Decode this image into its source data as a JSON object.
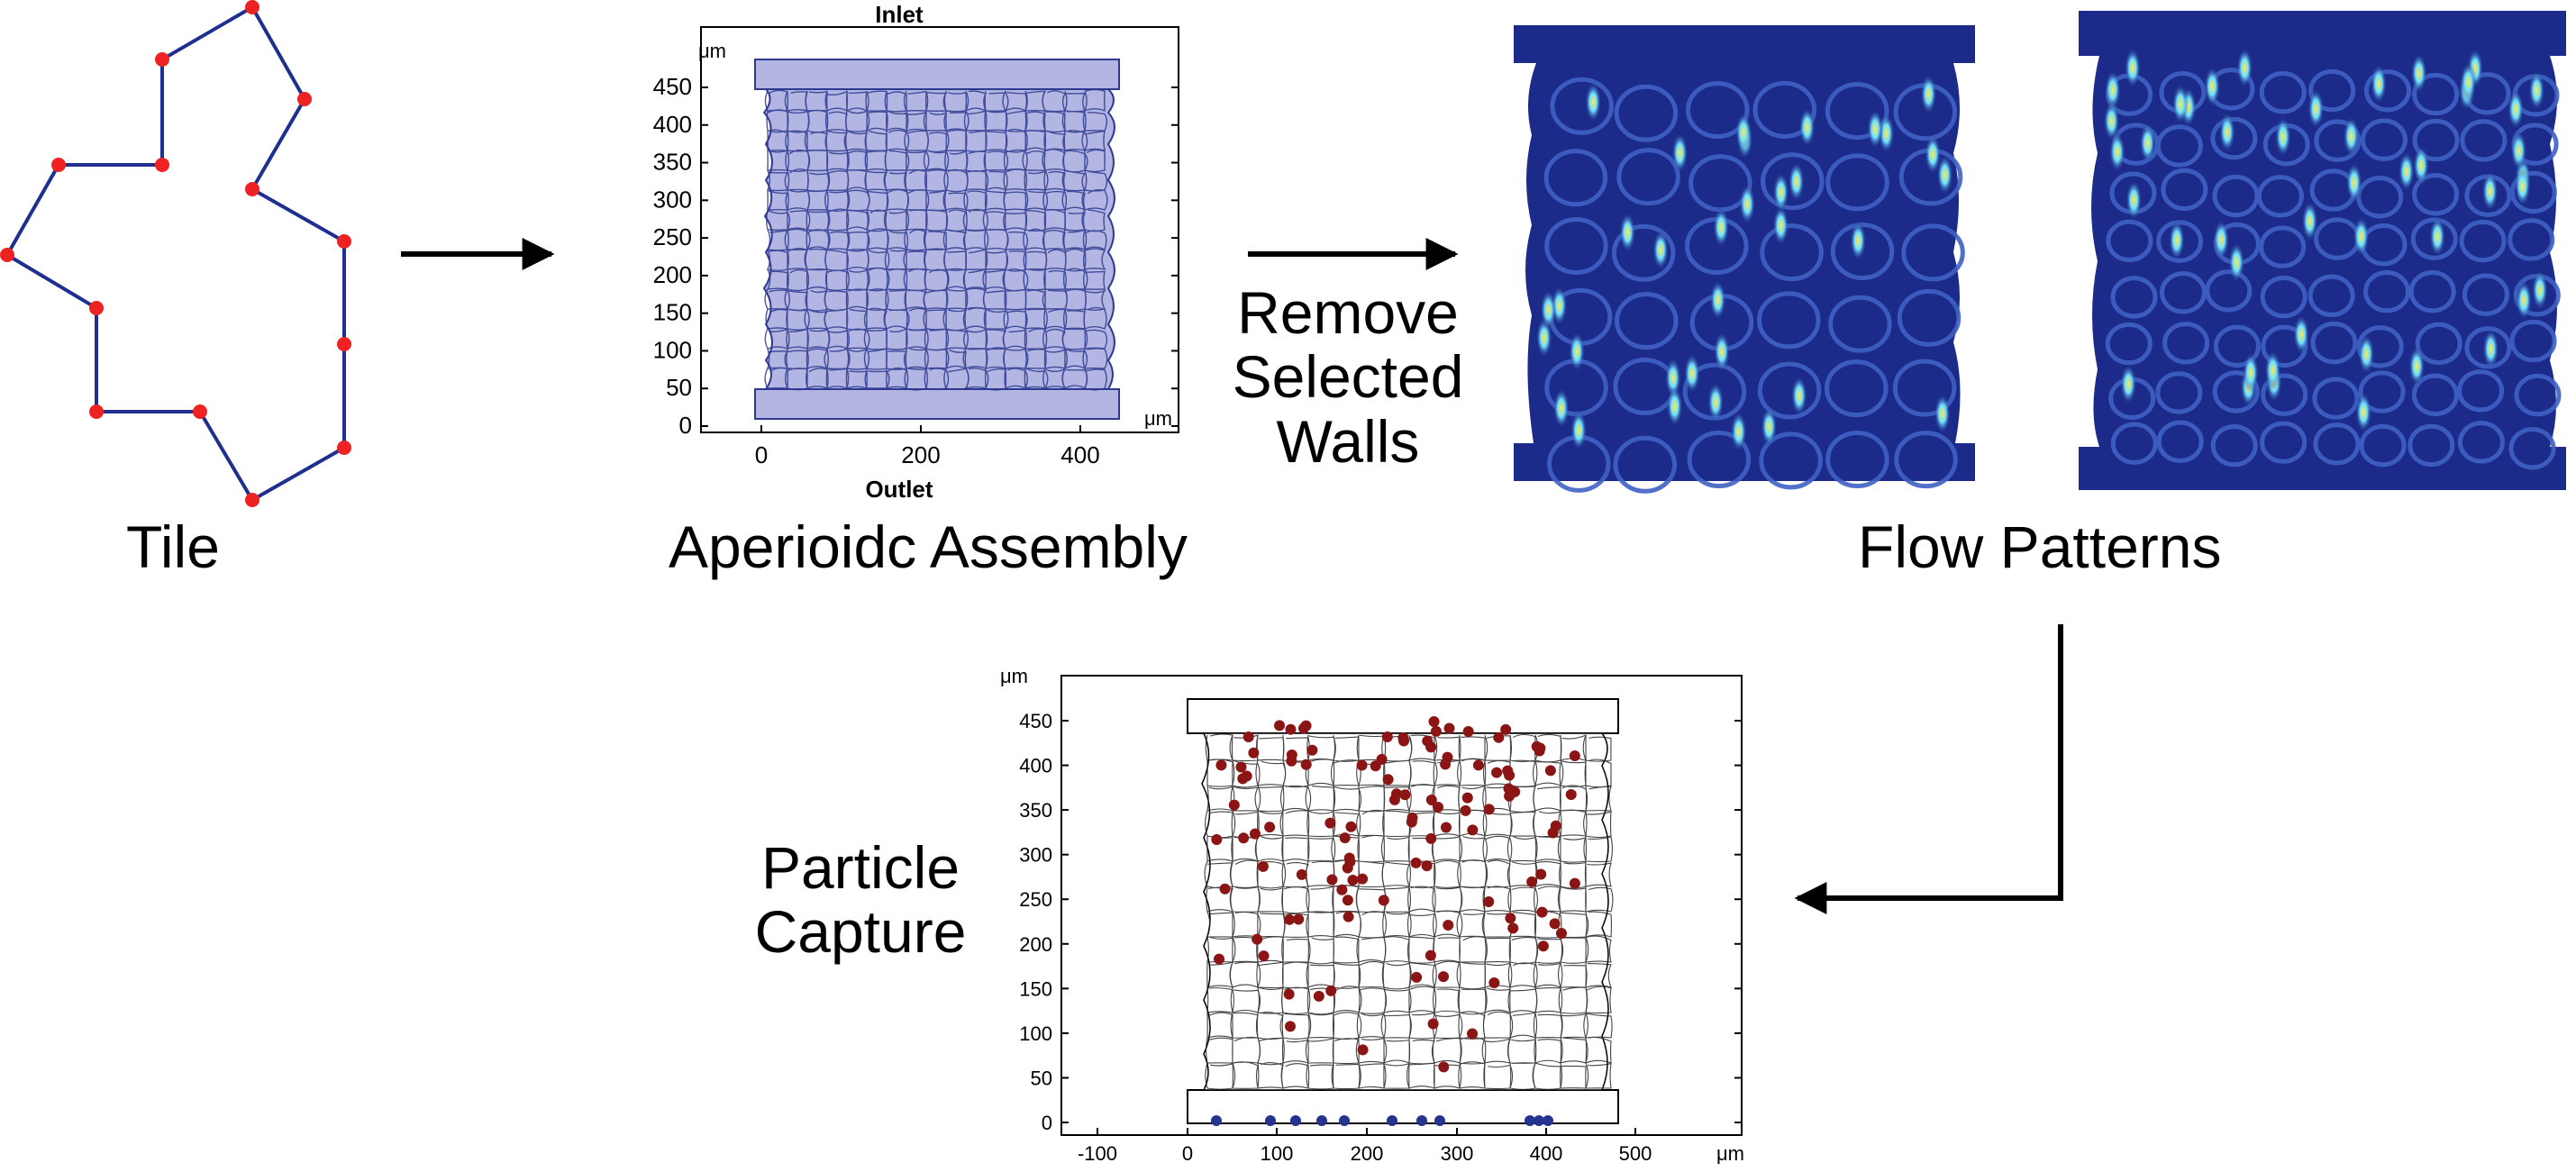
{
  "labels": {
    "tile": "Tile",
    "assembly": "Aperioidc Assembly",
    "remove": [
      "Remove",
      "Selected",
      "Walls"
    ],
    "flow": "Flow Patterns",
    "capture": [
      "Particle",
      "Capture"
    ]
  },
  "assembly_plot": {
    "inlet": "Inlet",
    "outlet": "Outlet",
    "unit": "μm",
    "y_ticks": [
      "450",
      "400",
      "350",
      "300",
      "250",
      "200",
      "150",
      "100",
      "50",
      "0"
    ],
    "x_ticks": [
      "0",
      "200",
      "400"
    ]
  },
  "capture_plot": {
    "unit": "μm",
    "y_ticks": [
      "450",
      "400",
      "350",
      "300",
      "250",
      "200",
      "150",
      "100",
      "50",
      "0"
    ],
    "x_ticks": [
      "-100",
      "0",
      "100",
      "200",
      "300",
      "400",
      "500"
    ]
  },
  "colors": {
    "tile_edge": "#1f2f8f",
    "tile_vertex": "#ee2222",
    "assembly_fill": "#b3b6e2",
    "assembly_edge": "#2e3a8f",
    "flow_background": "#1c2a8a",
    "flow_high": "#ffea3a",
    "particle_captured": "#8b1414",
    "particle_escaped": "#26338f",
    "arrow": "#000000"
  }
}
